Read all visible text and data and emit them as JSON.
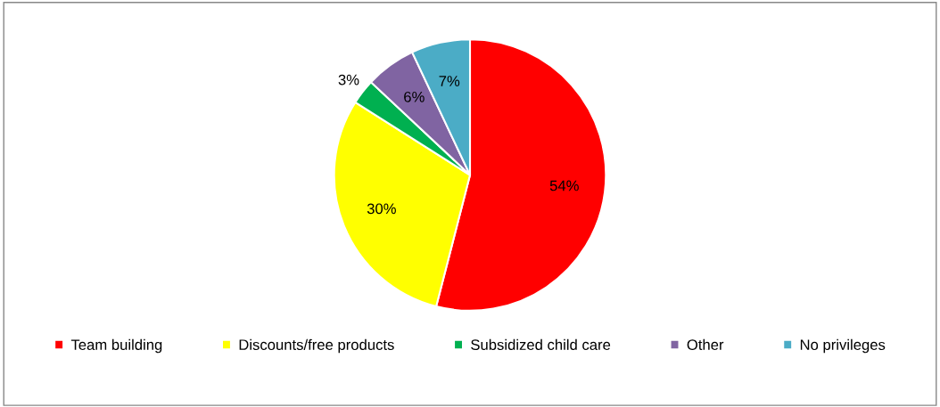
{
  "chart_data": {
    "type": "pie",
    "categories": [
      "Team building",
      "Discounts/free products",
      "Subsidized child care",
      "Other",
      "No privileges"
    ],
    "values": [
      54,
      30,
      3,
      6,
      7
    ],
    "colors": [
      "#ff0000",
      "#ffff00",
      "#00b050",
      "#8064a2",
      "#4bacc6"
    ],
    "value_labels": [
      "54%",
      "30%",
      "3%",
      "6%",
      "7%"
    ],
    "legend": "bottom"
  }
}
